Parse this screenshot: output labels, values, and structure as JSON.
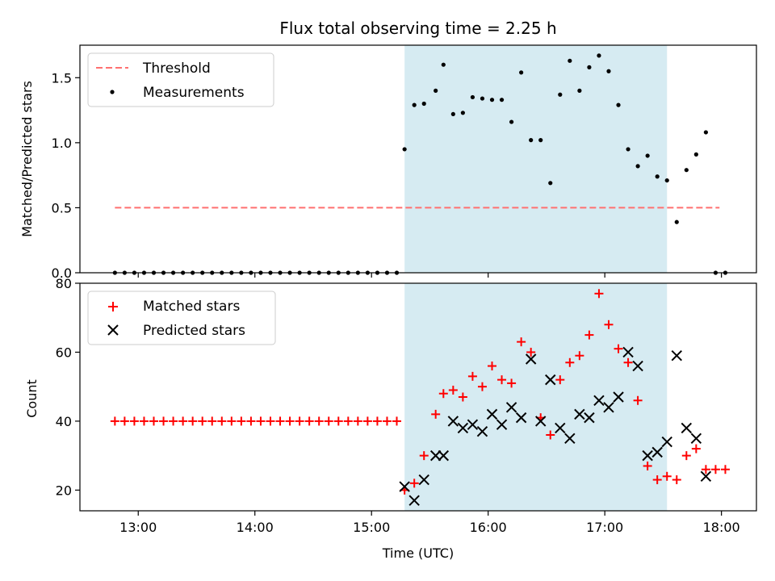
{
  "chart_data": [
    {
      "type": "scatter",
      "title": "Flux total observing time = 2.25 h",
      "xlabel": "",
      "ylabel": "Matched/Predicted stars",
      "xlim": [
        "12:30",
        "18:18"
      ],
      "ylim": [
        0,
        1.75
      ],
      "yticks": [
        "0.0",
        "0.5",
        "1.0",
        "1.5"
      ],
      "shaded_region": {
        "x0": "15:17",
        "x1": "17:32",
        "color": "#add8e6"
      },
      "threshold": {
        "name": "Threshold",
        "value": 0.5,
        "x0": "12:48",
        "x1": "17:59",
        "color": "#ff7070"
      },
      "series": [
        {
          "name": "Measurements",
          "marker": "dot",
          "color": "#000000",
          "points": [
            [
              "12:48",
              0
            ],
            [
              "12:53",
              0
            ],
            [
              "12:58",
              0
            ],
            [
              "13:03",
              0
            ],
            [
              "13:08",
              0
            ],
            [
              "13:13",
              0
            ],
            [
              "13:18",
              0
            ],
            [
              "13:23",
              0
            ],
            [
              "13:28",
              0
            ],
            [
              "13:33",
              0
            ],
            [
              "13:38",
              0
            ],
            [
              "13:43",
              0
            ],
            [
              "13:48",
              0
            ],
            [
              "13:53",
              0
            ],
            [
              "13:58",
              0
            ],
            [
              "14:03",
              0
            ],
            [
              "14:08",
              0
            ],
            [
              "14:13",
              0
            ],
            [
              "14:18",
              0
            ],
            [
              "14:23",
              0
            ],
            [
              "14:28",
              0
            ],
            [
              "14:33",
              0
            ],
            [
              "14:38",
              0
            ],
            [
              "14:43",
              0
            ],
            [
              "14:48",
              0
            ],
            [
              "14:53",
              0
            ],
            [
              "14:58",
              0
            ],
            [
              "15:03",
              0
            ],
            [
              "15:08",
              0
            ],
            [
              "15:13",
              0
            ],
            [
              "15:17",
              0.95
            ],
            [
              "15:22",
              1.29
            ],
            [
              "15:27",
              1.3
            ],
            [
              "15:33",
              1.4
            ],
            [
              "15:37",
              1.6
            ],
            [
              "15:42",
              1.22
            ],
            [
              "15:47",
              1.23
            ],
            [
              "15:52",
              1.35
            ],
            [
              "15:57",
              1.34
            ],
            [
              "16:02",
              1.33
            ],
            [
              "16:07",
              1.33
            ],
            [
              "16:12",
              1.16
            ],
            [
              "16:17",
              1.54
            ],
            [
              "16:22",
              1.02
            ],
            [
              "16:27",
              1.02
            ],
            [
              "16:32",
              0.69
            ],
            [
              "16:37",
              1.37
            ],
            [
              "16:42",
              1.63
            ],
            [
              "16:47",
              1.4
            ],
            [
              "16:52",
              1.58
            ],
            [
              "16:57",
              1.67
            ],
            [
              "17:02",
              1.55
            ],
            [
              "17:07",
              1.29
            ],
            [
              "17:12",
              0.95
            ],
            [
              "17:17",
              0.82
            ],
            [
              "17:22",
              0.9
            ],
            [
              "17:27",
              0.74
            ],
            [
              "17:32",
              0.71
            ],
            [
              "17:37",
              0.39
            ],
            [
              "17:42",
              0.79
            ],
            [
              "17:47",
              0.91
            ],
            [
              "17:52",
              1.08
            ],
            [
              "17:57",
              0
            ],
            [
              "18:02",
              0
            ]
          ]
        }
      ],
      "legend": {
        "placement": "top-left",
        "entries": [
          "Threshold",
          "Measurements"
        ]
      }
    },
    {
      "type": "scatter",
      "title": "",
      "xlabel": "Time (UTC)",
      "ylabel": "Count",
      "xlim": [
        "12:30",
        "18:18"
      ],
      "ylim": [
        14,
        80
      ],
      "yticks": [
        "20",
        "40",
        "60",
        "80"
      ],
      "xticks": [
        "13:00",
        "14:00",
        "15:00",
        "16:00",
        "17:00",
        "18:00"
      ],
      "shaded_region": {
        "x0": "15:17",
        "x1": "17:32",
        "color": "#add8e6"
      },
      "series": [
        {
          "name": "Matched stars",
          "marker": "plus",
          "color": "#ff0000",
          "points": [
            [
              "12:48",
              40
            ],
            [
              "12:53",
              40
            ],
            [
              "12:58",
              40
            ],
            [
              "13:03",
              40
            ],
            [
              "13:08",
              40
            ],
            [
              "13:13",
              40
            ],
            [
              "13:18",
              40
            ],
            [
              "13:23",
              40
            ],
            [
              "13:28",
              40
            ],
            [
              "13:33",
              40
            ],
            [
              "13:38",
              40
            ],
            [
              "13:43",
              40
            ],
            [
              "13:48",
              40
            ],
            [
              "13:53",
              40
            ],
            [
              "13:58",
              40
            ],
            [
              "14:03",
              40
            ],
            [
              "14:08",
              40
            ],
            [
              "14:13",
              40
            ],
            [
              "14:18",
              40
            ],
            [
              "14:23",
              40
            ],
            [
              "14:28",
              40
            ],
            [
              "14:33",
              40
            ],
            [
              "14:38",
              40
            ],
            [
              "14:43",
              40
            ],
            [
              "14:48",
              40
            ],
            [
              "14:53",
              40
            ],
            [
              "14:58",
              40
            ],
            [
              "15:03",
              40
            ],
            [
              "15:08",
              40
            ],
            [
              "15:13",
              40
            ],
            [
              "15:17",
              20
            ],
            [
              "15:22",
              22
            ],
            [
              "15:27",
              30
            ],
            [
              "15:33",
              42
            ],
            [
              "15:37",
              48
            ],
            [
              "15:42",
              49
            ],
            [
              "15:47",
              47
            ],
            [
              "15:52",
              53
            ],
            [
              "15:57",
              50
            ],
            [
              "16:02",
              56
            ],
            [
              "16:07",
              52
            ],
            [
              "16:12",
              51
            ],
            [
              "16:17",
              63
            ],
            [
              "16:22",
              60
            ],
            [
              "16:27",
              41
            ],
            [
              "16:32",
              36
            ],
            [
              "16:37",
              52
            ],
            [
              "16:42",
              57
            ],
            [
              "16:47",
              59
            ],
            [
              "16:52",
              65
            ],
            [
              "16:57",
              77
            ],
            [
              "17:02",
              68
            ],
            [
              "17:07",
              61
            ],
            [
              "17:12",
              57
            ],
            [
              "17:17",
              46
            ],
            [
              "17:22",
              27
            ],
            [
              "17:27",
              23
            ],
            [
              "17:32",
              24
            ],
            [
              "17:37",
              23
            ],
            [
              "17:42",
              30
            ],
            [
              "17:47",
              32
            ],
            [
              "17:52",
              26
            ],
            [
              "17:57",
              26
            ],
            [
              "18:02",
              26
            ]
          ]
        },
        {
          "name": "Predicted stars",
          "marker": "x",
          "color": "#000000",
          "points": [
            [
              "15:17",
              21
            ],
            [
              "15:22",
              17
            ],
            [
              "15:27",
              23
            ],
            [
              "15:33",
              30
            ],
            [
              "15:37",
              30
            ],
            [
              "15:42",
              40
            ],
            [
              "15:47",
              38
            ],
            [
              "15:52",
              39
            ],
            [
              "15:57",
              37
            ],
            [
              "16:02",
              42
            ],
            [
              "16:07",
              39
            ],
            [
              "16:12",
              44
            ],
            [
              "16:17",
              41
            ],
            [
              "16:22",
              58
            ],
            [
              "16:27",
              40
            ],
            [
              "16:32",
              52
            ],
            [
              "16:37",
              38
            ],
            [
              "16:42",
              35
            ],
            [
              "16:47",
              42
            ],
            [
              "16:52",
              41
            ],
            [
              "16:57",
              46
            ],
            [
              "17:02",
              44
            ],
            [
              "17:07",
              47
            ],
            [
              "17:12",
              60
            ],
            [
              "17:17",
              56
            ],
            [
              "17:22",
              30
            ],
            [
              "17:27",
              31
            ],
            [
              "17:32",
              34
            ],
            [
              "17:37",
              59
            ],
            [
              "17:42",
              38
            ],
            [
              "17:47",
              35
            ],
            [
              "17:52",
              24
            ]
          ]
        }
      ],
      "legend": {
        "placement": "top-left",
        "entries": [
          "Matched stars",
          "Predicted stars"
        ]
      }
    }
  ]
}
